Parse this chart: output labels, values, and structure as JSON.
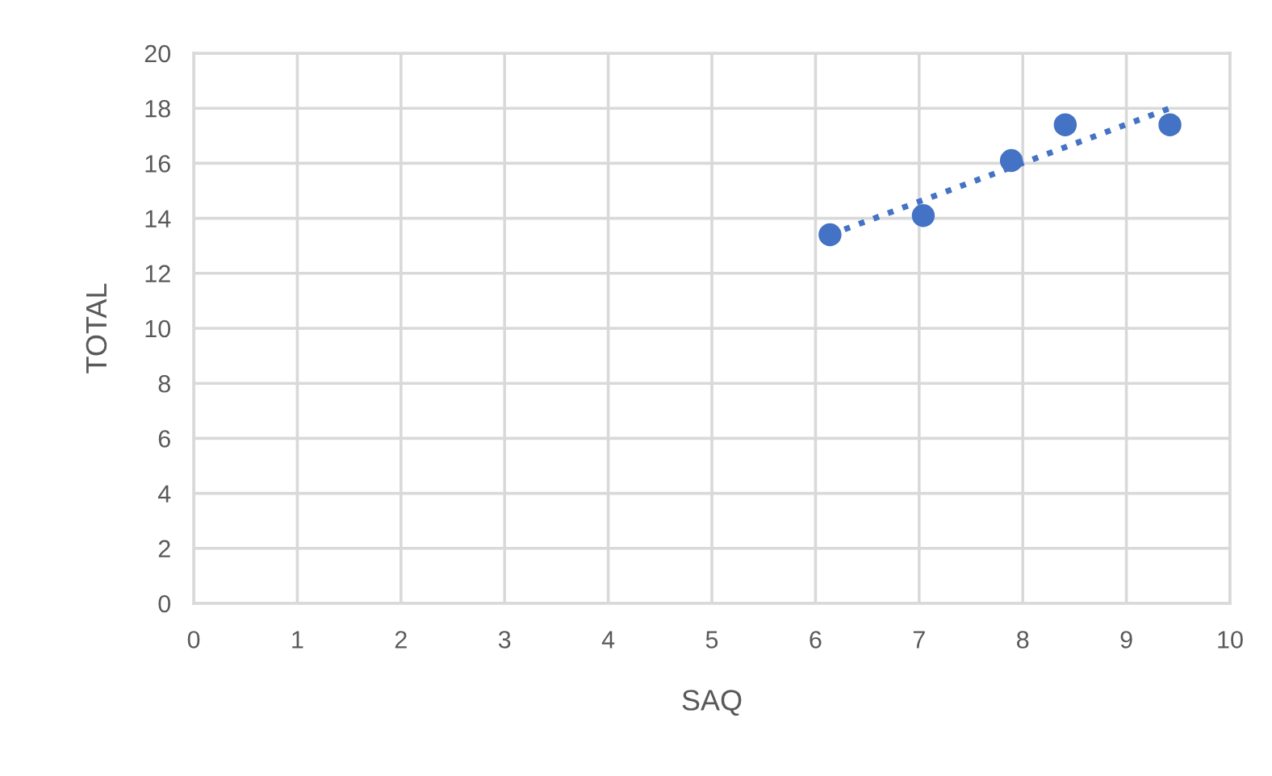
{
  "chart_data": {
    "type": "scatter",
    "xlabel": "SAQ",
    "ylabel": "TOTAL",
    "series": [
      {
        "color": "#4472c4",
        "marker": "circle",
        "x": [
          6.14,
          7.04,
          7.89,
          8.41,
          9.42
        ],
        "values": [
          13.4,
          14.1,
          16.1,
          17.4,
          17.4
        ]
      },
      {
        "type": "line",
        "color": "#4472c4",
        "line_style": "dotted",
        "x": [
          6.14,
          9.42
        ],
        "values": [
          13.4,
          18.0
        ]
      }
    ],
    "xlim": [
      0,
      10
    ],
    "xticks": [
      0,
      1,
      2,
      3,
      4,
      5,
      6,
      7,
      8,
      9,
      10
    ],
    "ylim": [
      0,
      20
    ],
    "yticks": [
      0,
      2,
      4,
      6,
      8,
      10,
      12,
      14,
      16,
      18,
      20
    ],
    "grid": true
  }
}
